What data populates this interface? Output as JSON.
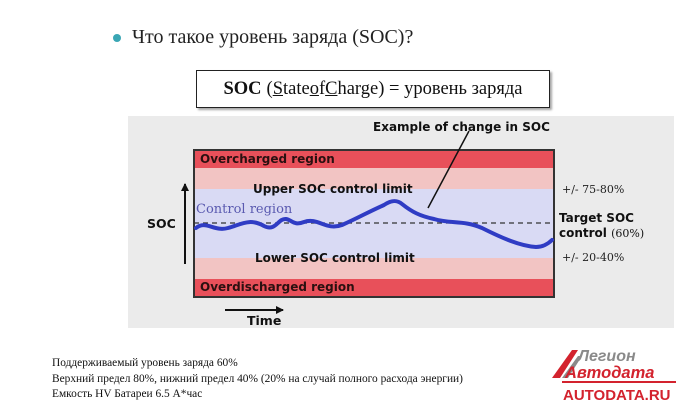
{
  "title": {
    "text": "Что такое уровень заряда (SOC)?"
  },
  "definition": {
    "abbr": "SOC",
    "open_paren": " (",
    "w1_first": "S",
    "w1_rest": "tate ",
    "w2_first": "o",
    "w2_rest": "f ",
    "w3_first": "C",
    "w3_rest": "harge",
    "close": ") = уровень заряда"
  },
  "diagram": {
    "example_label": "Example of change in SOC",
    "overcharged_label": "Overcharged region",
    "upper_limit_label": "Upper SOC control limit",
    "control_region_label": "Control region",
    "lower_limit_label": "Lower SOC control limit",
    "overdischarged_label": "Overdischarged region",
    "y_axis_label": "SOC",
    "x_axis_label": "Time",
    "upper_range_label": "+/- 75-80%",
    "target_label_1": "Target SOC",
    "target_label_2_text": "control",
    "target_label_2_pct": "(60%)",
    "lower_range_label": "+/- 20-40%",
    "colors": {
      "overcharge": "#e8505a",
      "warning": "#f2c4c3",
      "control": "#d9daf4",
      "curve": "#2f3cc4",
      "panel": "#ebebeb"
    }
  },
  "footer": {
    "line1": "Поддерживаемый уровень заряда 60%",
    "line2": "Верхний предел 80%, нижний  предел 40% (20% на случай полного расхода энергии)",
    "line3": "Емкость HV Батареи 6.5 А*час"
  },
  "logo": {
    "line1": "Легион",
    "line2": "Автодата",
    "line3": "AUTODATA.RU",
    "colors": {
      "red": "#d3232e",
      "gray": "#8a8a8a"
    }
  }
}
